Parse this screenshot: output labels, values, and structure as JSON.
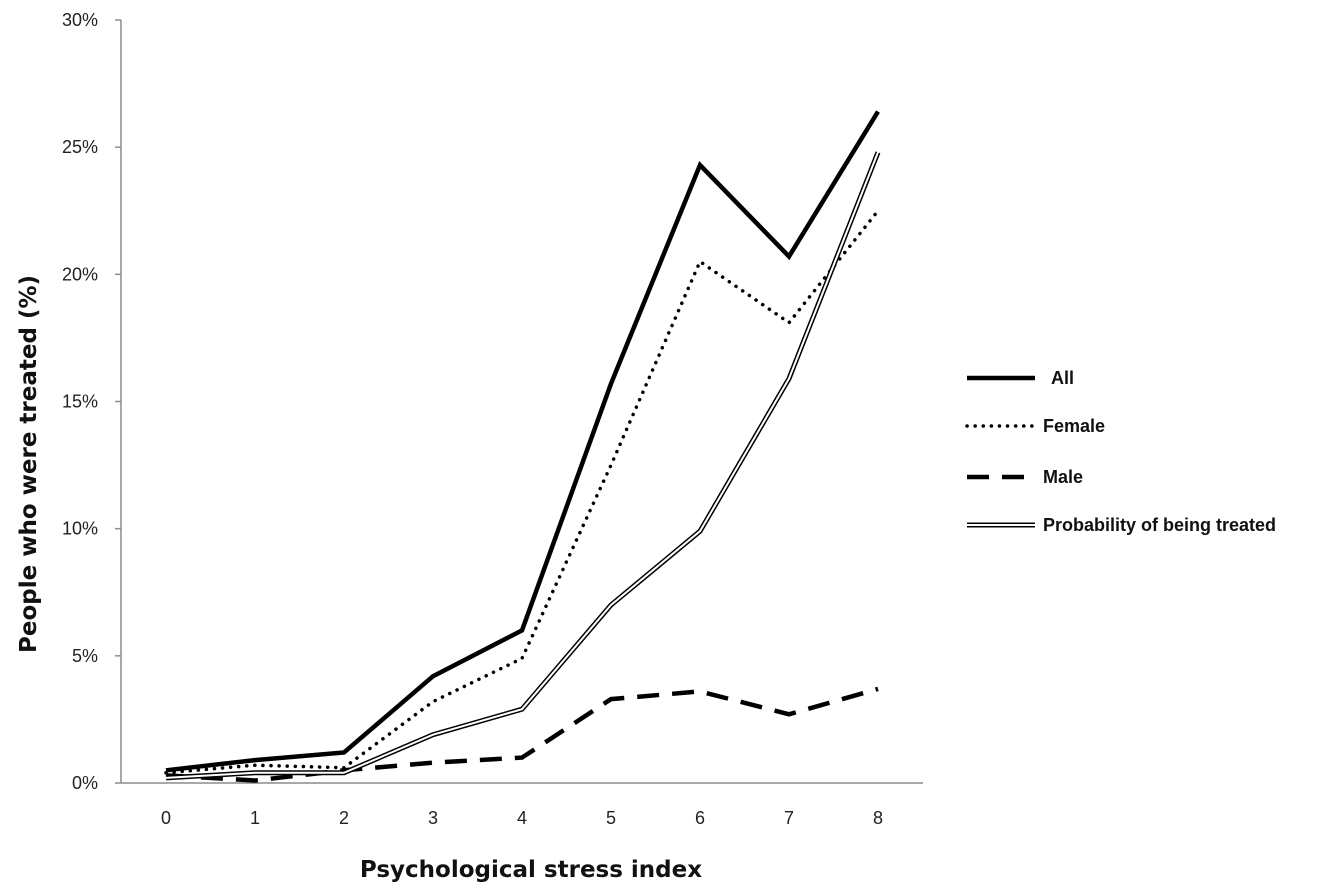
{
  "chart_data": {
    "type": "line",
    "title": "",
    "xlabel": "Psychological stress index",
    "ylabel": "People who were treated  (%)",
    "x": [
      0,
      1,
      2,
      3,
      4,
      5,
      6,
      7,
      8
    ],
    "x_tick_labels": [
      "0",
      "1",
      "2",
      "3",
      "4",
      "5",
      "6",
      "7",
      "8"
    ],
    "ylim": [
      0,
      30
    ],
    "y_ticks": [
      0,
      5,
      10,
      15,
      20,
      25,
      30
    ],
    "y_tick_labels": [
      "0%",
      "5%",
      "10%",
      "15%",
      "20%",
      "25%",
      "30%"
    ],
    "grid": false,
    "legend_position": "right",
    "series": [
      {
        "name": "All",
        "style": "solid-thick",
        "color": "#000000",
        "values": [
          0.5,
          0.9,
          1.2,
          4.2,
          6.0,
          15.7,
          24.3,
          20.7,
          26.4
        ]
      },
      {
        "name": "Female",
        "style": "dotted",
        "color": "#000000",
        "values": [
          0.4,
          0.7,
          0.6,
          3.2,
          4.9,
          12.5,
          20.5,
          18.1,
          22.5
        ]
      },
      {
        "name": "Male",
        "style": "dashed",
        "color": "#000000",
        "values": [
          0.3,
          0.1,
          0.5,
          0.8,
          1.0,
          3.3,
          3.6,
          2.7,
          3.7
        ]
      },
      {
        "name": "Probability of being treated",
        "style": "double",
        "color": "#000000",
        "values": [
          0.2,
          0.4,
          0.4,
          1.9,
          2.9,
          7.0,
          9.9,
          15.9,
          24.8
        ]
      }
    ]
  }
}
